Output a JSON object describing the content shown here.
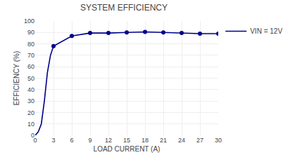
{
  "chart_data": {
    "type": "line",
    "title": "SYSTEM EFFICIENCY",
    "x_label": "LOAD CURRENT (A)",
    "y_label": "EFFICIENCY (%)",
    "series": [
      {
        "name": "VIN = 12V",
        "color": "#00008B",
        "type": "line",
        "line_style": "solid",
        "x": [
          0,
          0.2,
          0.5,
          1,
          1.5,
          2,
          2.5,
          3,
          6,
          9,
          12,
          15,
          18,
          21,
          24,
          27,
          30
        ],
        "values": [
          0,
          1,
          3,
          10,
          30,
          55,
          70,
          78,
          87,
          89.5,
          89.5,
          90,
          90.5,
          90,
          89.5,
          89,
          89
        ]
      },
      {
        "color": "#00008B",
        "type": "scatter",
        "marker": "circle",
        "x": [
          3,
          6,
          9,
          12,
          15,
          18,
          21,
          24,
          27,
          30
        ],
        "values": [
          78,
          87,
          89.5,
          89.5,
          90,
          90.5,
          90,
          89.5,
          89,
          89
        ]
      }
    ],
    "xlim": [
      0,
      30
    ],
    "ylim": [
      0,
      100
    ],
    "xticks": [
      0,
      3,
      6,
      9,
      12,
      15,
      18,
      21,
      24,
      27,
      30
    ],
    "yticks": [
      0,
      10,
      20,
      30,
      40,
      50,
      60,
      70,
      80,
      90,
      100
    ],
    "grid": true,
    "legend": "right"
  }
}
